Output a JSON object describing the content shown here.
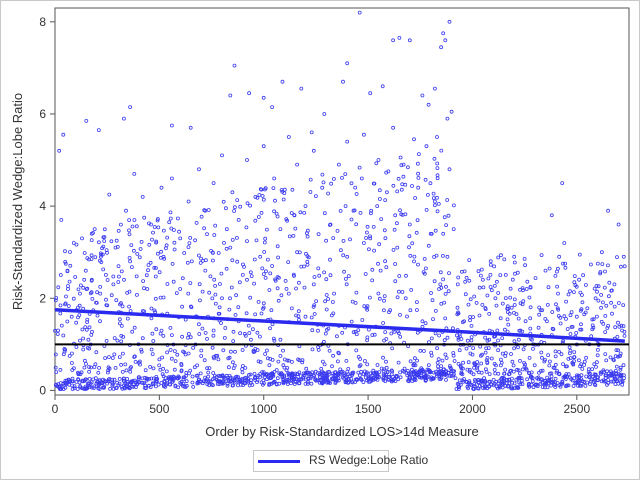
{
  "colors": {
    "points": "#3a3af0",
    "trend": "#2a2af0",
    "reference": "#000000",
    "frame": "#c8c8c8"
  },
  "chart_data": {
    "type": "scatter",
    "title": "",
    "xlabel": "Order by Risk-Standardized LOS>14d Measure",
    "ylabel": "Risk-Standardized Wedge:Lobe Ratio",
    "xlim": [
      0,
      2750
    ],
    "ylim": [
      -0.1,
      8.3
    ],
    "xticks": [
      0,
      500,
      1000,
      1500,
      2000,
      2500
    ],
    "yticks": [
      0,
      2,
      4,
      6,
      8
    ],
    "grid": false,
    "legend_position": "bottom-center",
    "reference_line": {
      "y": 1.0
    },
    "trend_lines": [
      {
        "name": "RS Wedge:Lobe Ratio",
        "segments": [
          {
            "x": [
              0,
              1920
            ],
            "y": [
              1.75,
              1.28
            ]
          },
          {
            "x": [
              1920,
              2730
            ],
            "y": [
              1.28,
              1.07
            ]
          }
        ]
      }
    ],
    "series": [
      {
        "points": [
          [
            20,
            5.2
          ],
          [
            40,
            5.55
          ],
          [
            150,
            5.85
          ],
          [
            210,
            5.65
          ],
          [
            330,
            5.9
          ],
          [
            360,
            6.15
          ],
          [
            560,
            5.75
          ],
          [
            650,
            5.7
          ],
          [
            840,
            6.4
          ],
          [
            860,
            7.05
          ],
          [
            930,
            6.45
          ],
          [
            1000,
            6.35
          ],
          [
            1040,
            6.15
          ],
          [
            1090,
            6.7
          ],
          [
            1180,
            6.55
          ],
          [
            1230,
            5.6
          ],
          [
            1290,
            6.0
          ],
          [
            1380,
            6.7
          ],
          [
            1400,
            7.1
          ],
          [
            1460,
            8.2
          ],
          [
            1480,
            5.55
          ],
          [
            1510,
            6.45
          ],
          [
            1570,
            6.6
          ],
          [
            1620,
            7.6
          ],
          [
            1650,
            7.65
          ],
          [
            1700,
            7.6
          ],
          [
            1760,
            6.4
          ],
          [
            1790,
            6.2
          ],
          [
            1820,
            6.55
          ],
          [
            1850,
            7.45
          ],
          [
            1860,
            7.75
          ],
          [
            1870,
            7.6
          ],
          [
            1890,
            8.0
          ],
          [
            1880,
            5.9
          ],
          [
            1900,
            6.05
          ],
          [
            1830,
            5.5
          ],
          [
            1720,
            5.45
          ],
          [
            1620,
            5.7
          ],
          [
            2430,
            4.5
          ],
          [
            2380,
            3.8
          ],
          [
            2650,
            3.9
          ],
          [
            2700,
            3.6
          ],
          [
            30,
            3.7
          ],
          [
            60,
            2.6
          ],
          [
            90,
            3.2
          ],
          [
            110,
            1.8
          ],
          [
            140,
            2.4
          ],
          [
            190,
            3.5
          ],
          [
            220,
            2.9
          ],
          [
            260,
            4.25
          ],
          [
            290,
            3.1
          ],
          [
            340,
            3.9
          ],
          [
            380,
            4.7
          ],
          [
            420,
            4.2
          ],
          [
            460,
            3.6
          ],
          [
            510,
            4.4
          ],
          [
            560,
            4.6
          ],
          [
            600,
            3.3
          ],
          [
            640,
            4.1
          ],
          [
            690,
            4.8
          ],
          [
            720,
            3.9
          ],
          [
            760,
            4.5
          ],
          [
            800,
            5.1
          ],
          [
            850,
            4.3
          ],
          [
            880,
            3.7
          ],
          [
            920,
            5.0
          ],
          [
            960,
            4.2
          ],
          [
            1000,
            5.3
          ],
          [
            1050,
            4.6
          ],
          [
            1080,
            3.5
          ],
          [
            1120,
            5.5
          ],
          [
            1160,
            4.9
          ],
          [
            1200,
            4.0
          ],
          [
            1240,
            5.2
          ],
          [
            1280,
            4.4
          ],
          [
            1320,
            3.6
          ],
          [
            1360,
            4.9
          ],
          [
            1400,
            5.4
          ],
          [
            1430,
            3.9
          ],
          [
            1470,
            4.6
          ],
          [
            1510,
            3.3
          ],
          [
            1550,
            5.0
          ],
          [
            1590,
            4.3
          ],
          [
            1630,
            3.8
          ],
          [
            1670,
            4.9
          ],
          [
            1700,
            3.6
          ],
          [
            1740,
            4.4
          ],
          [
            1780,
            5.3
          ],
          [
            1820,
            4.1
          ],
          [
            1860,
            3.4
          ],
          [
            1890,
            4.8
          ],
          [
            15,
            1.3
          ],
          [
            45,
            0.9
          ],
          [
            80,
            1.6
          ],
          [
            120,
            2.1
          ],
          [
            160,
            1.1
          ],
          [
            200,
            1.9
          ],
          [
            240,
            0.7
          ],
          [
            280,
            2.3
          ],
          [
            320,
            1.4
          ],
          [
            360,
            2.8
          ],
          [
            400,
            1.0
          ],
          [
            440,
            2.5
          ],
          [
            480,
            1.7
          ],
          [
            520,
            2.9
          ],
          [
            560,
            1.2
          ],
          [
            600,
            2.2
          ],
          [
            640,
            0.8
          ],
          [
            680,
            1.6
          ],
          [
            720,
            2.6
          ],
          [
            760,
            1.3
          ],
          [
            800,
            2.0
          ],
          [
            840,
            3.1
          ],
          [
            880,
            1.5
          ],
          [
            920,
            2.4
          ],
          [
            960,
            0.9
          ],
          [
            1000,
            1.8
          ],
          [
            1040,
            2.7
          ],
          [
            1080,
            1.1
          ],
          [
            1120,
            2.1
          ],
          [
            1160,
            3.0
          ],
          [
            1200,
            1.6
          ],
          [
            1240,
            2.3
          ],
          [
            1280,
            1.0
          ],
          [
            1320,
            2.5
          ],
          [
            1360,
            1.4
          ],
          [
            1400,
            2.9
          ],
          [
            1440,
            1.9
          ],
          [
            1480,
            3.2
          ],
          [
            1520,
            1.2
          ],
          [
            1560,
            2.6
          ],
          [
            1600,
            1.7
          ],
          [
            1640,
            3.1
          ],
          [
            1680,
            2.0
          ],
          [
            1720,
            2.8
          ],
          [
            1760,
            1.5
          ],
          [
            1800,
            3.4
          ],
          [
            1840,
            2.2
          ],
          [
            1880,
            2.9
          ],
          [
            1910,
            3.5
          ],
          [
            1930,
            2.3
          ],
          [
            1960,
            1.5
          ],
          [
            1990,
            0.8
          ],
          [
            2020,
            1.9
          ],
          [
            2050,
            2.4
          ],
          [
            2080,
            1.1
          ],
          [
            2110,
            2.0
          ],
          [
            2140,
            0.6
          ],
          [
            2170,
            1.7
          ],
          [
            2200,
            2.9
          ],
          [
            2230,
            1.3
          ],
          [
            2260,
            2.2
          ],
          [
            2290,
            0.9
          ],
          [
            2320,
            1.8
          ],
          [
            2350,
            2.6
          ],
          [
            2380,
            1.2
          ],
          [
            2410,
            2.1
          ],
          [
            2440,
            3.2
          ],
          [
            2470,
            0.7
          ],
          [
            2500,
            1.6
          ],
          [
            2530,
            2.5
          ],
          [
            2560,
            1.0
          ],
          [
            2590,
            2.0
          ],
          [
            2620,
            3.0
          ],
          [
            2650,
            1.4
          ],
          [
            2680,
            2.3
          ],
          [
            2710,
            0.8
          ],
          [
            2725,
            2.9
          ]
        ],
        "low_band": {
          "x": [
            0,
            1920
          ],
          "y": [
            0.12,
            0.35
          ],
          "x2": [
            1920,
            2730
          ],
          "y2": [
            0.12,
            0.25
          ]
        }
      }
    ]
  },
  "legend": {
    "label": "RS Wedge:Lobe Ratio"
  }
}
